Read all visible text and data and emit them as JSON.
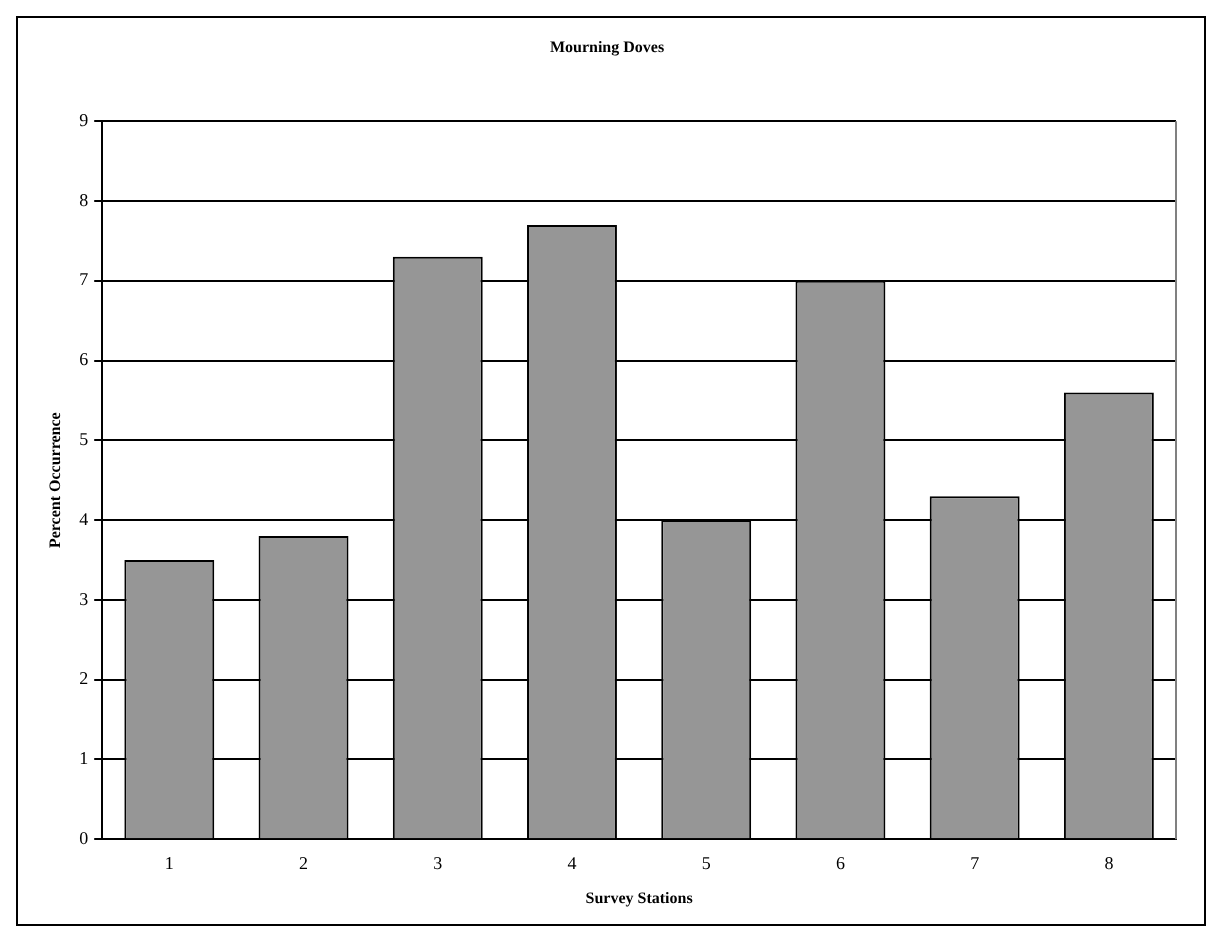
{
  "chart_data": {
    "type": "bar",
    "title": "Mourning Doves",
    "xlabel": "Survey Stations",
    "ylabel": "Percent Occurrence",
    "categories": [
      "1",
      "2",
      "3",
      "4",
      "5",
      "6",
      "7",
      "8"
    ],
    "values": [
      3.5,
      3.8,
      7.3,
      7.7,
      4.0,
      7.0,
      4.3,
      5.6
    ],
    "color": "#969696",
    "ylim": [
      0,
      9
    ],
    "yticks": [
      0,
      1,
      2,
      3,
      4,
      5,
      6,
      7,
      8,
      9
    ],
    "grid": "y",
    "legend": false
  }
}
